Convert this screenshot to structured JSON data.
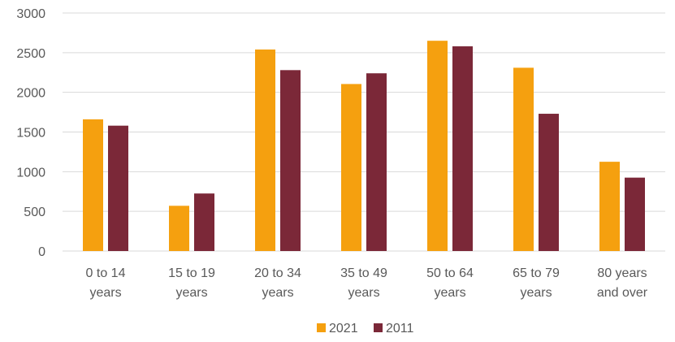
{
  "chart_data": {
    "type": "bar",
    "title": "",
    "xlabel": "",
    "ylabel": "",
    "categories": [
      [
        "0 to 14",
        "years"
      ],
      [
        "15 to 19",
        "years"
      ],
      [
        "20 to 34",
        "years"
      ],
      [
        "35 to 49",
        "years"
      ],
      [
        "50 to 64",
        "years"
      ],
      [
        "65 to 79",
        "years"
      ],
      [
        "80 years",
        "and over"
      ]
    ],
    "series": [
      {
        "name": "2021",
        "color": "#F5A00F",
        "values": [
          1660,
          570,
          2540,
          2105,
          2650,
          2310,
          1125
        ]
      },
      {
        "name": "2011",
        "color": "#7B2838",
        "values": [
          1580,
          725,
          2280,
          2240,
          2580,
          1730,
          925
        ]
      }
    ],
    "ylim": [
      0,
      3000
    ],
    "yticks": [
      0,
      500,
      1000,
      1500,
      2000,
      2500,
      3000
    ],
    "grid": true,
    "gridColor": "#D9D9D9",
    "legend": "bottom-center"
  }
}
